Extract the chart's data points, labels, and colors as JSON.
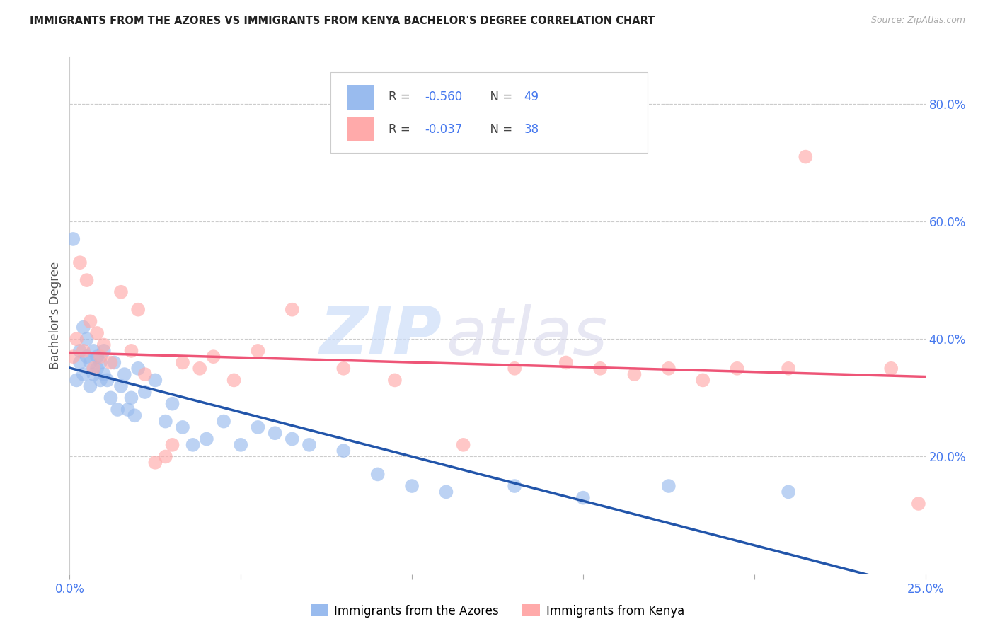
{
  "title": "IMMIGRANTS FROM THE AZORES VS IMMIGRANTS FROM KENYA BACHELOR'S DEGREE CORRELATION CHART",
  "source_text": "Source: ZipAtlas.com",
  "ylabel": "Bachelor's Degree",
  "right_ytick_labels": [
    "80.0%",
    "60.0%",
    "40.0%",
    "20.0%"
  ],
  "right_ytick_values": [
    0.8,
    0.6,
    0.4,
    0.2
  ],
  "xlim": [
    0.0,
    0.25
  ],
  "ylim": [
    0.0,
    0.88
  ],
  "xtick_labels": [
    "0.0%",
    "",
    "",
    "",
    "",
    "25.0%"
  ],
  "xtick_values": [
    0.0,
    0.05,
    0.1,
    0.15,
    0.2,
    0.25
  ],
  "legend_label1": "Immigrants from the Azores",
  "legend_label2": "Immigrants from Kenya",
  "legend_r1": "R = -0.560",
  "legend_n1": "N = 49",
  "legend_r2": "R = -0.037",
  "legend_n2": "N = 38",
  "color_blue": "#99BBEE",
  "color_pink": "#FFAAAA",
  "color_blue_line": "#2255AA",
  "color_pink_line": "#EE5577",
  "color_axis_blue": "#4477EE",
  "color_text_dark": "#222222",
  "color_grid": "#CCCCCC",
  "watermark_zip_color": "#CCDDF8",
  "watermark_atlas_color": "#DDDDEE",
  "azores_x": [
    0.001,
    0.002,
    0.003,
    0.003,
    0.004,
    0.004,
    0.005,
    0.005,
    0.006,
    0.006,
    0.007,
    0.007,
    0.008,
    0.008,
    0.009,
    0.009,
    0.01,
    0.01,
    0.011,
    0.012,
    0.013,
    0.014,
    0.015,
    0.016,
    0.017,
    0.018,
    0.019,
    0.02,
    0.022,
    0.025,
    0.028,
    0.03,
    0.033,
    0.036,
    0.04,
    0.045,
    0.05,
    0.055,
    0.06,
    0.065,
    0.07,
    0.08,
    0.09,
    0.1,
    0.11,
    0.13,
    0.15,
    0.175,
    0.21
  ],
  "azores_y": [
    0.57,
    0.33,
    0.38,
    0.36,
    0.42,
    0.34,
    0.4,
    0.37,
    0.36,
    0.32,
    0.38,
    0.34,
    0.35,
    0.37,
    0.33,
    0.36,
    0.34,
    0.38,
    0.33,
    0.3,
    0.36,
    0.28,
    0.32,
    0.34,
    0.28,
    0.3,
    0.27,
    0.35,
    0.31,
    0.33,
    0.26,
    0.29,
    0.25,
    0.22,
    0.23,
    0.26,
    0.22,
    0.25,
    0.24,
    0.23,
    0.22,
    0.21,
    0.17,
    0.15,
    0.14,
    0.15,
    0.13,
    0.15,
    0.14
  ],
  "kenya_x": [
    0.001,
    0.002,
    0.003,
    0.004,
    0.005,
    0.006,
    0.007,
    0.008,
    0.009,
    0.01,
    0.012,
    0.015,
    0.018,
    0.02,
    0.022,
    0.025,
    0.028,
    0.03,
    0.033,
    0.038,
    0.042,
    0.048,
    0.055,
    0.065,
    0.08,
    0.095,
    0.115,
    0.13,
    0.145,
    0.155,
    0.165,
    0.175,
    0.185,
    0.195,
    0.21,
    0.215,
    0.24,
    0.248
  ],
  "kenya_y": [
    0.37,
    0.4,
    0.53,
    0.38,
    0.5,
    0.43,
    0.35,
    0.41,
    0.37,
    0.39,
    0.36,
    0.48,
    0.38,
    0.45,
    0.34,
    0.19,
    0.2,
    0.22,
    0.36,
    0.35,
    0.37,
    0.33,
    0.38,
    0.45,
    0.35,
    0.33,
    0.22,
    0.35,
    0.36,
    0.35,
    0.34,
    0.35,
    0.33,
    0.35,
    0.35,
    0.71,
    0.35,
    0.12
  ]
}
